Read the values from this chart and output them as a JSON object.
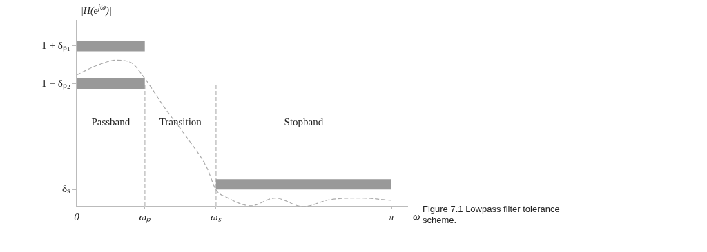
{
  "chart_data": {
    "type": "line",
    "ylabel": "|H(e$^{jω}$)|",
    "xlabel": "ω",
    "xlim": [
      0,
      3.3
    ],
    "xticks": [
      0,
      {
        "value": 0.68,
        "label": "ωₚ"
      },
      {
        "value": 1.39,
        "label": "ωₛ"
      },
      {
        "value": 3.14159,
        "label": "π"
      }
    ],
    "ylim": [
      0,
      1.2
    ],
    "yticks": [
      {
        "value": 1.036,
        "label": "1 + δₚ₁"
      },
      {
        "value": 0.793,
        "label": "1 − δₚ₂"
      },
      {
        "value": 0.109,
        "label": "δₛ"
      }
    ],
    "grid": false,
    "legend": false,
    "marker": "none",
    "series": [
      {
        "color": "#999999",
        "line_style": "solid",
        "x": [
          0,
          0.68
        ],
        "values": [
          1.036,
          1.036
        ]
      },
      {
        "color": "#999999",
        "line_style": "solid",
        "x": [
          0,
          0.68
        ],
        "values": [
          0.793,
          0.793
        ]
      },
      {
        "color": "#999999",
        "line_style": "solid",
        "x": [
          1.39,
          3.14159
        ],
        "values": [
          0.143,
          0.143
        ]
      },
      {
        "color": "#aaaaaa",
        "line_style": "dashed",
        "x": [
          0,
          0.2,
          0.4,
          0.54,
          0.68,
          0.88,
          1.09,
          1.3,
          1.39,
          1.5,
          1.74,
          1.98,
          2.26,
          2.53,
          2.84,
          3.14
        ],
        "values": [
          0.85,
          0.91,
          0.945,
          0.93,
          0.827,
          0.636,
          0.455,
          0.25,
          0.109,
          0.059,
          0.005,
          0.055,
          0,
          0.045,
          0.055,
          0.04
        ]
      }
    ],
    "ref_lines": [
      {
        "axis": "x",
        "value": 0.68,
        "color": "#cccccc",
        "line_style": "dashed"
      },
      {
        "axis": "x",
        "value": 1.39,
        "color": "#cccccc",
        "line_style": "dashed"
      }
    ],
    "annotations": [
      "Passband",
      "Transition",
      "Stopband",
      "Figure 7.1  Lowpass filter tolerance scheme."
    ]
  }
}
